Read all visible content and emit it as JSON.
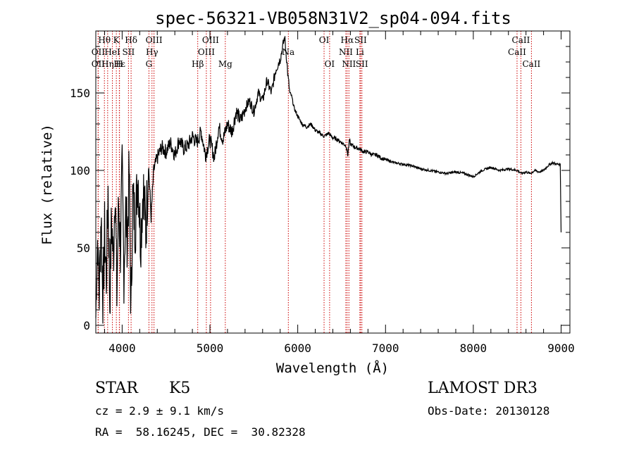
{
  "chart_data": {
    "type": "line",
    "title": "spec-56321-VB058N31V2_sp04-094.fits",
    "xlabel": "Wavelength (Å)",
    "ylabel": "Flux (relative)",
    "xlim": [
      3700,
      9100
    ],
    "ylim": [
      -5,
      190
    ],
    "x_ticks": [
      4000,
      5000,
      6000,
      7000,
      8000,
      9000
    ],
    "y_ticks": [
      0,
      50,
      100,
      150
    ],
    "grid": false,
    "series": [
      {
        "name": "spectrum",
        "x": [
          3700,
          3720,
          3740,
          3760,
          3780,
          3800,
          3820,
          3840,
          3860,
          3880,
          3900,
          3920,
          3940,
          3960,
          3980,
          4000,
          4020,
          4040,
          4060,
          4080,
          4100,
          4120,
          4150,
          4180,
          4210,
          4240,
          4270,
          4300,
          4330,
          4360,
          4400,
          4450,
          4500,
          4550,
          4600,
          4650,
          4700,
          4750,
          4800,
          4850,
          4900,
          4950,
          5000,
          5050,
          5100,
          5150,
          5200,
          5250,
          5300,
          5350,
          5400,
          5450,
          5500,
          5550,
          5600,
          5650,
          5700,
          5750,
          5800,
          5830,
          5850,
          5870,
          5890,
          5910,
          5930,
          5960,
          6000,
          6050,
          6100,
          6150,
          6200,
          6250,
          6300,
          6350,
          6400,
          6450,
          6500,
          6550,
          6570,
          6590,
          6600,
          6650,
          6700,
          6750,
          6800,
          6850,
          6900,
          6950,
          7000,
          7100,
          7200,
          7300,
          7400,
          7500,
          7600,
          7700,
          7800,
          7900,
          8000,
          8050,
          8100,
          8200,
          8300,
          8400,
          8500,
          8550,
          8600,
          8650,
          8700,
          8750,
          8800,
          8850,
          8900,
          8950,
          8990,
          9000
        ],
        "values": [
          5,
          55,
          20,
          75,
          10,
          60,
          30,
          88,
          15,
          70,
          40,
          95,
          20,
          80,
          50,
          98,
          35,
          75,
          55,
          100,
          5,
          82,
          65,
          100,
          55,
          90,
          60,
          105,
          70,
          100,
          108,
          115,
          112,
          118,
          110,
          120,
          114,
          116,
          122,
          118,
          125,
          110,
          120,
          108,
          128,
          120,
          130,
          125,
          138,
          132,
          140,
          145,
          138,
          150,
          145,
          158,
          150,
          165,
          172,
          180,
          186,
          175,
          160,
          150,
          148,
          140,
          135,
          130,
          128,
          130,
          126,
          124,
          122,
          124,
          121,
          120,
          118,
          116,
          110,
          120,
          117,
          115,
          114,
          112,
          112,
          110,
          110,
          108,
          107,
          105,
          104,
          103,
          101,
          100,
          99,
          98,
          99,
          98,
          96,
          98,
          100,
          102,
          100,
          101,
          100,
          98,
          99,
          98,
          100,
          99,
          100,
          103,
          105,
          104,
          104,
          60
        ]
      }
    ],
    "lines": [
      {
        "label": "Hθ",
        "x": 3798,
        "row": 1
      },
      {
        "label": "OII",
        "x": 3727,
        "row": 2
      },
      {
        "label": "OII",
        "x": 3727,
        "row": 3
      },
      {
        "label": "K",
        "x": 3934,
        "row": 1
      },
      {
        "label": "HeI",
        "x": 3889,
        "row": 2
      },
      {
        "label": "Hε",
        "x": 3970,
        "row": 3
      },
      {
        "label": "Hη",
        "x": 3835,
        "row": 3
      },
      {
        "label": "H",
        "x": 3968,
        "row": 3
      },
      {
        "label": "SII",
        "x": 4072,
        "row": 2
      },
      {
        "label": "Hδ",
        "x": 4102,
        "row": 1
      },
      {
        "label": "OIII",
        "x": 4363,
        "row": 1
      },
      {
        "label": "Hγ",
        "x": 4340,
        "row": 2
      },
      {
        "label": "G",
        "x": 4305,
        "row": 3
      },
      {
        "label": "Hβ",
        "x": 4861,
        "row": 3
      },
      {
        "label": "OIII",
        "x": 5007,
        "row": 1
      },
      {
        "label": "OIII",
        "x": 4959,
        "row": 2
      },
      {
        "label": "Mg",
        "x": 5175,
        "row": 3
      },
      {
        "label": "Na",
        "x": 5893,
        "row": 2
      },
      {
        "label": "OI",
        "x": 6300,
        "row": 1
      },
      {
        "label": "OI",
        "x": 6363,
        "row": 3
      },
      {
        "label": "Hα",
        "x": 6563,
        "row": 1
      },
      {
        "label": "SII",
        "x": 6716,
        "row": 1
      },
      {
        "label": "NII",
        "x": 6548,
        "row": 2
      },
      {
        "label": "Li",
        "x": 6708,
        "row": 2
      },
      {
        "label": "NII",
        "x": 6583,
        "row": 3
      },
      {
        "label": "SII",
        "x": 6731,
        "row": 3
      },
      {
        "label": "CaII",
        "x": 8542,
        "row": 1
      },
      {
        "label": "CaII",
        "x": 8498,
        "row": 2
      },
      {
        "label": "CaII",
        "x": 8662,
        "row": 3
      }
    ],
    "colors": {
      "line_markers": "#cc0000",
      "spectrum": "#000000"
    }
  },
  "info": {
    "class": "STAR",
    "subclass": "K5",
    "cz": "cz = 2.9 ± 9.1 km/s",
    "radec": "RA =  58.16245, DEC =  30.82328",
    "survey": "LAMOST DR3",
    "obs_date": "Obs-Date: 20130128"
  }
}
